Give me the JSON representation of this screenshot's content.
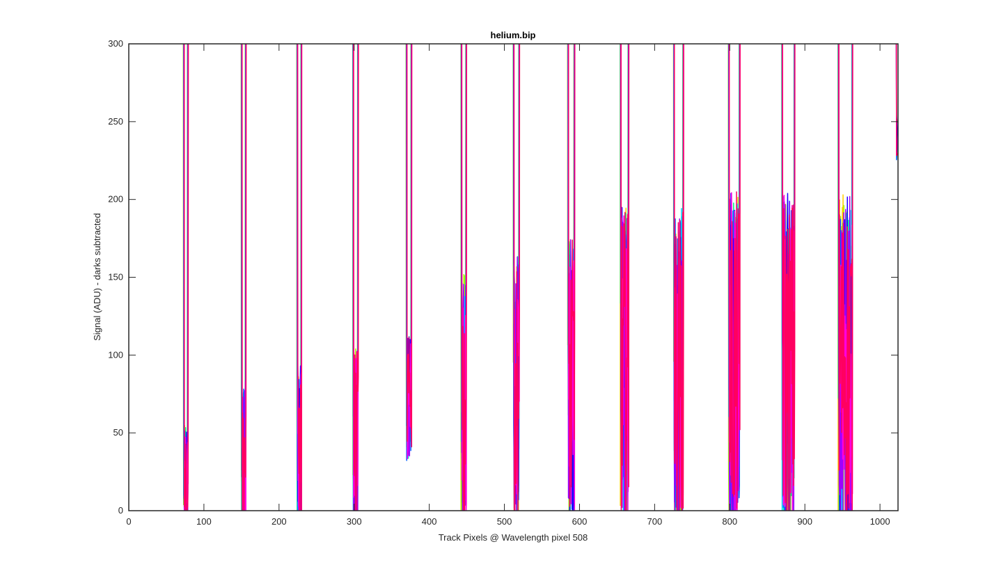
{
  "chart_data": {
    "type": "line",
    "title": "helium.bip",
    "xlabel": "Track Pixels @ Wavelength pixel 508",
    "ylabel": "Signal (ADU) - darks subtracted",
    "xlim": [
      0,
      1024
    ],
    "ylim": [
      0,
      300
    ],
    "xticks": [
      0,
      100,
      200,
      300,
      400,
      500,
      600,
      700,
      800,
      900,
      1000
    ],
    "yticks": [
      0,
      50,
      100,
      150,
      200,
      250,
      300
    ],
    "grid": false,
    "legend": "none",
    "series_colors": [
      "#ffd000",
      "#a0ff00",
      "#00ff80",
      "#00d0ff",
      "#0060ff",
      "#2000ff",
      "#a000ff",
      "#ff00e0",
      "#ff0060"
    ],
    "dip_centers": [
      76,
      153,
      227,
      302,
      373,
      446,
      516,
      589,
      660,
      732,
      806,
      878,
      954
    ],
    "dip_half_widths": [
      2.5,
      2.5,
      2.5,
      3,
      3,
      3,
      3.5,
      4,
      5,
      6,
      7,
      8,
      9
    ],
    "dip_minimum": [
      0,
      0,
      0,
      0,
      32,
      0,
      0,
      0,
      0,
      0,
      0,
      0,
      0
    ],
    "dip_noise_level": [
      10,
      40,
      50,
      60,
      80,
      110,
      120,
      130,
      150,
      150,
      160,
      160,
      160
    ],
    "right_edge_value": 240
  }
}
